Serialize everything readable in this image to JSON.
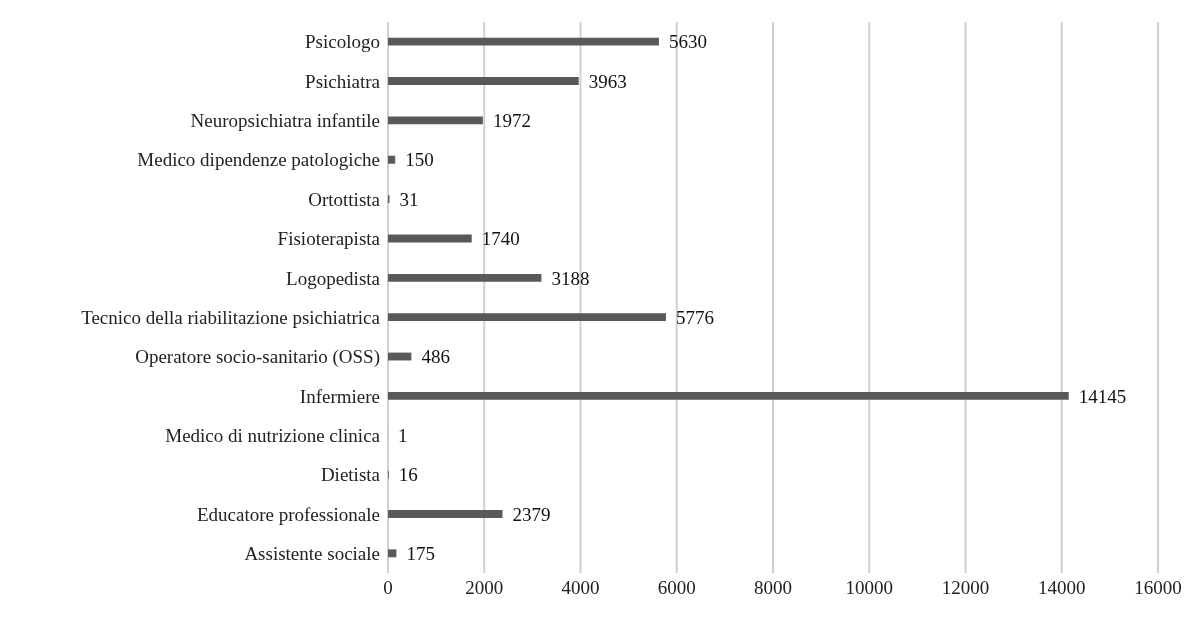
{
  "chart_data": {
    "type": "bar",
    "orientation": "horizontal",
    "categories": [
      "Psicologo",
      "Psichiatra",
      "Neuropsichiatra infantile",
      "Medico dipendenze patologiche",
      "Ortottista",
      "Fisioterapista",
      "Logopedista",
      "Tecnico della riabilitazione psichiatrica",
      "Operatore socio-sanitario (OSS)",
      "Infermiere",
      "Medico di nutrizione clinica",
      "Dietista",
      "Educatore professionale",
      "Assistente sociale"
    ],
    "values": [
      5630,
      3963,
      1972,
      150,
      31,
      1740,
      3188,
      5776,
      486,
      14145,
      1,
      16,
      2379,
      175
    ],
    "color": "#595959",
    "xlim": [
      0,
      16000
    ],
    "xticks": [
      0,
      2000,
      4000,
      6000,
      8000,
      10000,
      12000,
      14000,
      16000
    ],
    "grid": "x",
    "data_labels": true,
    "legend": false
  }
}
